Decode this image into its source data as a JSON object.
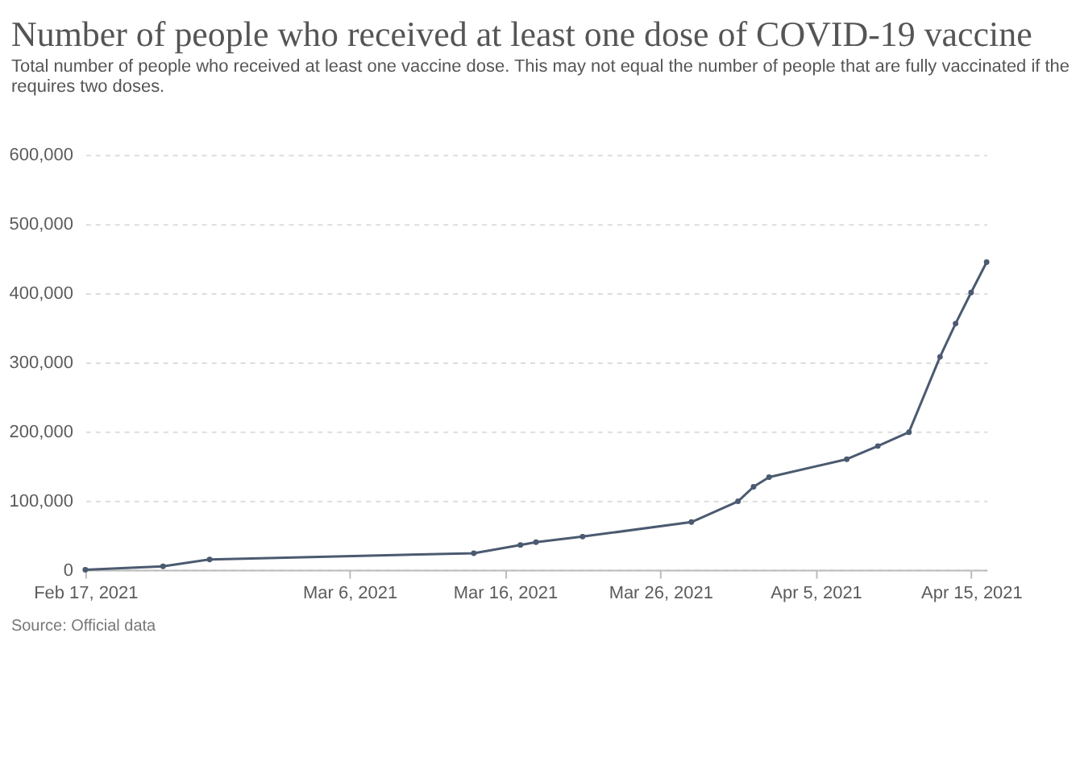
{
  "chart_data": {
    "type": "line",
    "title": "Number of people who received at least one dose of COVID-19 vaccine",
    "subtitle": [
      "Total number of people who received at least one vaccine dose. This may not equal the number of people that are fully vaccinated if the",
      "requires two doses."
    ],
    "x": [
      "2021-02-17",
      "2021-02-22",
      "2021-02-25",
      "2021-03-14",
      "2021-03-17",
      "2021-03-18",
      "2021-03-21",
      "2021-03-28",
      "2021-03-31",
      "2021-04-01",
      "2021-04-02",
      "2021-04-07",
      "2021-04-09",
      "2021-04-11",
      "2021-04-13",
      "2021-04-14",
      "2021-04-15",
      "2021-04-16"
    ],
    "series": [
      {
        "color": "#4b5a70",
        "values": [
          0,
          5000,
          15000,
          24000,
          36000,
          40000,
          48000,
          69000,
          99000,
          120000,
          134000,
          160000,
          179000,
          199000,
          308000,
          356000,
          401000,
          445000
        ]
      }
    ],
    "xlim": [
      "2021-02-17",
      "2021-04-16"
    ],
    "xticks": [
      {
        "value": "2021-02-17",
        "label": "Feb 17, 2021"
      },
      {
        "value": "2021-03-06",
        "label": "Mar 6, 2021"
      },
      {
        "value": "2021-03-16",
        "label": "Mar 16, 2021"
      },
      {
        "value": "2021-03-26",
        "label": "Mar 26, 2021"
      },
      {
        "value": "2021-04-05",
        "label": "Apr 5, 2021"
      },
      {
        "value": "2021-04-15",
        "label": "Apr 15, 2021"
      }
    ],
    "ylim": [
      0,
      600000
    ],
    "yticks": [
      {
        "value": 0,
        "label": "0"
      },
      {
        "value": 100000,
        "label": "100,000"
      },
      {
        "value": 200000,
        "label": "200,000"
      },
      {
        "value": 300000,
        "label": "300,000"
      },
      {
        "value": 400000,
        "label": "400,000"
      },
      {
        "value": 500000,
        "label": "500,000"
      },
      {
        "value": 600000,
        "label": "600,000"
      }
    ],
    "grid": "y",
    "marker": "circle",
    "line_style": "solid",
    "annotations": [
      "Source: Official data"
    ]
  }
}
